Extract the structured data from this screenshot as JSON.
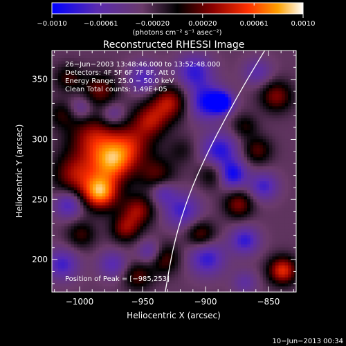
{
  "chart_data": {
    "type": "heatmap",
    "title": "Reconstructed RHESSI Image",
    "xlabel": "Heliocentric X (arcsec)",
    "ylabel": "Heliocentric Y (arcsec)",
    "xlim": [
      -1022,
      -828
    ],
    "ylim": [
      173,
      374
    ],
    "xticks": [
      -1000,
      -950,
      -900,
      -850
    ],
    "yticks": [
      200,
      250,
      300,
      350
    ],
    "colorbar": {
      "min": -0.001,
      "max": 0.001,
      "ticks": [
        -0.001,
        -0.00061,
        -0.0002,
        0.0002,
        0.00061,
        0.001
      ],
      "tick_labels": [
        "−0.0010",
        "−0.00061",
        "−0.00020",
        "0.00020",
        "0.00061",
        "0.0010"
      ],
      "units": "(photons cm⁻² s⁻¹ asec⁻²)"
    },
    "annotations": [
      "26−Jun−2003 13:48:46.000 to 13:52:48.000",
      "Detectors: 4F 5F 6F 7F 8F, Att 0",
      "Energy Range: 25.0 − 50.0 keV",
      "Clean    Total counts: 1.49E+05"
    ],
    "peak_label": "Position of Peak = [−985,253]",
    "peak_position": [
      -985,
      253
    ],
    "timestamp": "10−Jun−2013 00:34",
    "blobs": [
      {
        "x": -985,
        "y": 255,
        "v": 1.0,
        "s": 10
      },
      {
        "x": -975,
        "y": 280,
        "v": 0.85,
        "s": 12
      },
      {
        "x": -990,
        "y": 300,
        "v": 0.6,
        "s": 14
      },
      {
        "x": -1005,
        "y": 270,
        "v": 0.55,
        "s": 12
      },
      {
        "x": -960,
        "y": 295,
        "v": 0.5,
        "s": 12
      },
      {
        "x": -945,
        "y": 315,
        "v": 0.55,
        "s": 10
      },
      {
        "x": -930,
        "y": 330,
        "v": 0.6,
        "s": 10
      },
      {
        "x": -985,
        "y": 340,
        "v": 0.45,
        "s": 10
      },
      {
        "x": -1010,
        "y": 350,
        "v": 0.35,
        "s": 8
      },
      {
        "x": -955,
        "y": 240,
        "v": 0.55,
        "s": 9
      },
      {
        "x": -940,
        "y": 270,
        "v": 0.4,
        "s": 10
      },
      {
        "x": -965,
        "y": 225,
        "v": 0.5,
        "s": 8
      },
      {
        "x": -1000,
        "y": 220,
        "v": 0.35,
        "s": 8
      },
      {
        "x": -935,
        "y": 200,
        "v": 0.45,
        "s": 9
      },
      {
        "x": -905,
        "y": 220,
        "v": 0.45,
        "s": 8
      },
      {
        "x": -875,
        "y": 245,
        "v": 0.5,
        "s": 8
      },
      {
        "x": -860,
        "y": 290,
        "v": 0.4,
        "s": 8
      },
      {
        "x": -845,
        "y": 335,
        "v": 0.5,
        "s": 9
      },
      {
        "x": -840,
        "y": 190,
        "v": 0.75,
        "s": 8
      },
      {
        "x": -870,
        "y": 310,
        "v": 0.3,
        "s": 7
      },
      {
        "x": -895,
        "y": 270,
        "v": 0.35,
        "s": 8
      },
      {
        "x": -1015,
        "y": 320,
        "v": 0.3,
        "s": 8
      },
      {
        "x": -920,
        "y": 290,
        "v": 0.2,
        "s": 8
      },
      {
        "x": -955,
        "y": 185,
        "v": 0.4,
        "s": 8
      },
      {
        "x": -900,
        "y": 330,
        "v": -0.7,
        "s": 10
      },
      {
        "x": -888,
        "y": 330,
        "v": -0.8,
        "s": 6
      },
      {
        "x": -910,
        "y": 355,
        "v": -0.55,
        "s": 10
      },
      {
        "x": -890,
        "y": 290,
        "v": -0.6,
        "s": 10
      },
      {
        "x": -880,
        "y": 270,
        "v": -0.7,
        "s": 8
      },
      {
        "x": -900,
        "y": 200,
        "v": -0.55,
        "s": 10
      },
      {
        "x": -920,
        "y": 240,
        "v": -0.5,
        "s": 10
      },
      {
        "x": -870,
        "y": 215,
        "v": -0.55,
        "s": 8
      },
      {
        "x": -855,
        "y": 260,
        "v": -0.5,
        "s": 8
      },
      {
        "x": -950,
        "y": 350,
        "v": -0.45,
        "s": 9
      },
      {
        "x": -975,
        "y": 320,
        "v": -0.35,
        "s": 7
      },
      {
        "x": -1010,
        "y": 245,
        "v": -0.5,
        "s": 8
      },
      {
        "x": -1015,
        "y": 195,
        "v": -0.5,
        "s": 9
      },
      {
        "x": -1000,
        "y": 325,
        "v": -0.35,
        "s": 7
      },
      {
        "x": -945,
        "y": 205,
        "v": -0.45,
        "s": 7
      },
      {
        "x": -935,
        "y": 255,
        "v": -0.4,
        "s": 7
      },
      {
        "x": -975,
        "y": 195,
        "v": -0.4,
        "s": 8
      },
      {
        "x": -860,
        "y": 355,
        "v": -0.35,
        "s": 8
      },
      {
        "x": -870,
        "y": 180,
        "v": -0.3,
        "s": 7
      }
    ],
    "limb_arc": [
      [
        -932,
        173
      ],
      [
        -925,
        215
      ],
      [
        -913,
        255
      ],
      [
        -898,
        290
      ],
      [
        -883,
        320
      ],
      [
        -868,
        348
      ],
      [
        -853,
        374
      ]
    ]
  }
}
